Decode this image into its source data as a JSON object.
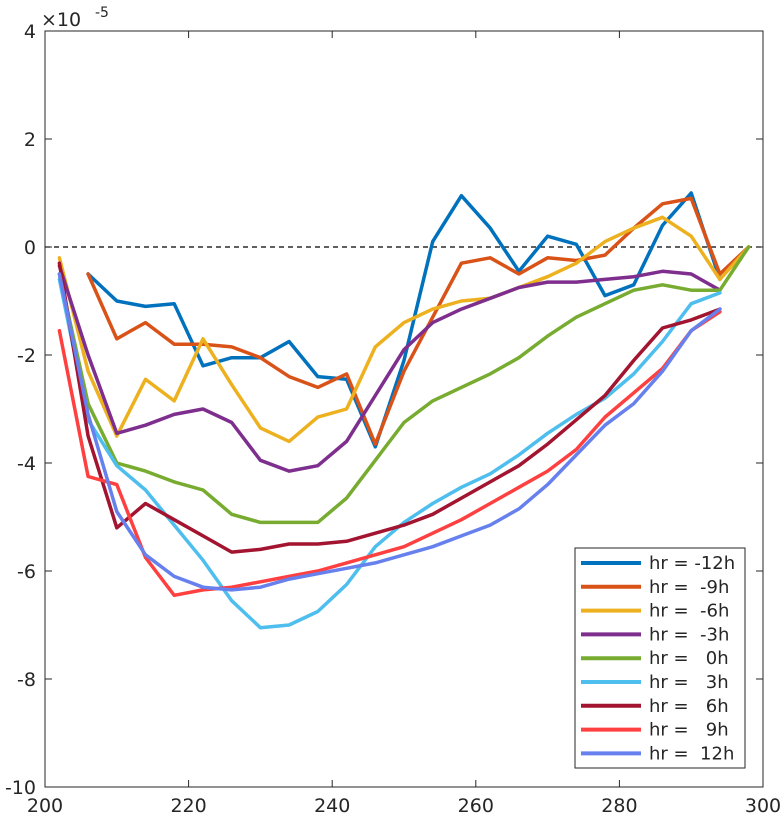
{
  "chart_data": {
    "type": "line",
    "title": "",
    "xlabel": "",
    "ylabel": "",
    "xlim": [
      200,
      300
    ],
    "ylim": [
      -10,
      4
    ],
    "y_scale_exponent": "×10",
    "y_scale_power": "-5",
    "xticks": [
      {
        "value": 200,
        "label": "200"
      },
      {
        "value": 220,
        "label": "220"
      },
      {
        "value": 240,
        "label": "240"
      },
      {
        "value": 260,
        "label": "260"
      },
      {
        "value": 280,
        "label": "280"
      },
      {
        "value": 300,
        "label": "300"
      }
    ],
    "yticks": [
      {
        "value": 4,
        "label": "4"
      },
      {
        "value": 2,
        "label": "2"
      },
      {
        "value": 0,
        "label": "0"
      },
      {
        "value": -2,
        "label": "-2"
      },
      {
        "value": -4,
        "label": "-4"
      },
      {
        "value": -6,
        "label": "-6"
      },
      {
        "value": -8,
        "label": "-8"
      },
      {
        "value": -10,
        "label": "-10"
      }
    ],
    "grid": false,
    "reference_line": {
      "y": 0,
      "style": "dashed"
    },
    "legend_position": "bottom-right",
    "series": [
      {
        "name": "hr = -12h",
        "color": "#0072BD",
        "x": [
          206,
          210,
          214,
          218,
          222,
          226,
          230,
          234,
          238,
          242,
          246,
          250,
          254,
          258,
          262,
          266,
          270,
          274,
          278,
          282,
          286,
          290,
          294
        ],
        "y": [
          -0.5,
          -1.0,
          -1.1,
          -1.05,
          -2.2,
          -2.05,
          -2.05,
          -1.75,
          -2.4,
          -2.45,
          -3.7,
          -2.1,
          0.1,
          0.95,
          0.35,
          -0.45,
          0.2,
          0.05,
          -0.9,
          -0.7,
          0.4,
          1.0,
          -0.6
        ]
      },
      {
        "name": "hr =  -9h",
        "color": "#D95319",
        "x": [
          206,
          210,
          214,
          218,
          222,
          226,
          230,
          234,
          238,
          242,
          246,
          250,
          254,
          258,
          262,
          266,
          270,
          274,
          278,
          282,
          286,
          290,
          294,
          298
        ],
        "y": [
          -0.5,
          -1.7,
          -1.4,
          -1.8,
          -1.8,
          -1.85,
          -2.05,
          -2.4,
          -2.6,
          -2.35,
          -3.65,
          -2.3,
          -1.3,
          -0.3,
          -0.2,
          -0.5,
          -0.2,
          -0.25,
          -0.15,
          0.35,
          0.8,
          0.9,
          -0.5,
          0.0
        ]
      },
      {
        "name": "hr =  -6h",
        "color": "#EDB120",
        "x": [
          202,
          206,
          210,
          214,
          218,
          222,
          226,
          230,
          234,
          238,
          242,
          246,
          250,
          254,
          258,
          262,
          266,
          270,
          274,
          278,
          282,
          286,
          290,
          294,
          298
        ],
        "y": [
          -0.2,
          -2.3,
          -3.5,
          -2.45,
          -2.85,
          -1.7,
          -2.55,
          -3.35,
          -3.6,
          -3.15,
          -3.0,
          -1.85,
          -1.4,
          -1.15,
          -1.0,
          -0.95,
          -0.75,
          -0.55,
          -0.3,
          0.1,
          0.35,
          0.55,
          0.2,
          -0.6,
          0.0
        ]
      },
      {
        "name": "hr =  -3h",
        "color": "#7E2F8E",
        "x": [
          202,
          206,
          210,
          214,
          218,
          222,
          226,
          230,
          234,
          238,
          242,
          246,
          250,
          254,
          258,
          262,
          266,
          270,
          274,
          278,
          282,
          286,
          290,
          294
        ],
        "y": [
          -0.35,
          -2.0,
          -3.45,
          -3.3,
          -3.1,
          -3.0,
          -3.25,
          -3.95,
          -4.15,
          -4.05,
          -3.6,
          -2.75,
          -1.9,
          -1.4,
          -1.15,
          -0.95,
          -0.75,
          -0.65,
          -0.65,
          -0.6,
          -0.55,
          -0.45,
          -0.5,
          -0.8
        ]
      },
      {
        "name": "hr =   0h",
        "color": "#77AC30",
        "x": [
          202,
          206,
          210,
          214,
          218,
          222,
          226,
          230,
          234,
          238,
          242,
          246,
          250,
          254,
          258,
          262,
          266,
          270,
          274,
          278,
          282,
          286,
          290,
          294,
          298
        ],
        "y": [
          -0.5,
          -2.9,
          -4.0,
          -4.15,
          -4.35,
          -4.5,
          -4.95,
          -5.1,
          -5.1,
          -5.1,
          -4.65,
          -3.95,
          -3.25,
          -2.85,
          -2.6,
          -2.35,
          -2.05,
          -1.65,
          -1.3,
          -1.05,
          -0.8,
          -0.7,
          -0.8,
          -0.8,
          0.0
        ]
      },
      {
        "name": "hr =   3h",
        "color": "#4DBEEE",
        "x": [
          202,
          206,
          210,
          214,
          218,
          222,
          226,
          230,
          234,
          238,
          242,
          246,
          250,
          254,
          258,
          262,
          266,
          270,
          274,
          278,
          282,
          286,
          290,
          294
        ],
        "y": [
          -0.6,
          -3.2,
          -4.05,
          -4.5,
          -5.15,
          -5.8,
          -6.55,
          -7.05,
          -7.0,
          -6.75,
          -6.25,
          -5.55,
          -5.1,
          -4.75,
          -4.45,
          -4.2,
          -3.85,
          -3.45,
          -3.1,
          -2.8,
          -2.35,
          -1.75,
          -1.05,
          -0.85
        ]
      },
      {
        "name": "hr =   6h",
        "color": "#A2142F",
        "x": [
          202,
          206,
          210,
          214,
          218,
          222,
          226,
          230,
          234,
          238,
          242,
          246,
          250,
          254,
          258,
          262,
          266,
          270,
          274,
          278,
          282,
          286,
          290,
          294
        ],
        "y": [
          -0.3,
          -3.5,
          -5.2,
          -4.75,
          -5.05,
          -5.35,
          -5.65,
          -5.6,
          -5.5,
          -5.5,
          -5.45,
          -5.3,
          -5.15,
          -4.95,
          -4.65,
          -4.35,
          -4.05,
          -3.65,
          -3.2,
          -2.75,
          -2.1,
          -1.5,
          -1.35,
          -1.15
        ]
      },
      {
        "name": "hr =   9h",
        "color": "#FF4040",
        "x": [
          202,
          206,
          210,
          214,
          218,
          222,
          226,
          230,
          234,
          238,
          242,
          246,
          250,
          254,
          258,
          262,
          266,
          270,
          274,
          278,
          282,
          286,
          290,
          294
        ],
        "y": [
          -1.55,
          -4.25,
          -4.4,
          -5.75,
          -6.45,
          -6.35,
          -6.3,
          -6.2,
          -6.1,
          -6.0,
          -5.85,
          -5.7,
          -5.55,
          -5.3,
          -5.05,
          -4.75,
          -4.45,
          -4.15,
          -3.75,
          -3.15,
          -2.7,
          -2.25,
          -1.55,
          -1.2
        ]
      },
      {
        "name": "hr =  12h",
        "color": "#6680EE",
        "x": [
          202,
          206,
          210,
          214,
          218,
          222,
          226,
          230,
          234,
          238,
          242,
          246,
          250,
          254,
          258,
          262,
          266,
          270,
          274,
          278,
          282,
          286,
          290,
          294
        ],
        "y": [
          -0.5,
          -3.1,
          -4.9,
          -5.7,
          -6.1,
          -6.3,
          -6.35,
          -6.3,
          -6.15,
          -6.05,
          -5.95,
          -5.85,
          -5.7,
          -5.55,
          -5.35,
          -5.15,
          -4.85,
          -4.4,
          -3.85,
          -3.3,
          -2.9,
          -2.3,
          -1.55,
          -1.15
        ]
      }
    ]
  }
}
